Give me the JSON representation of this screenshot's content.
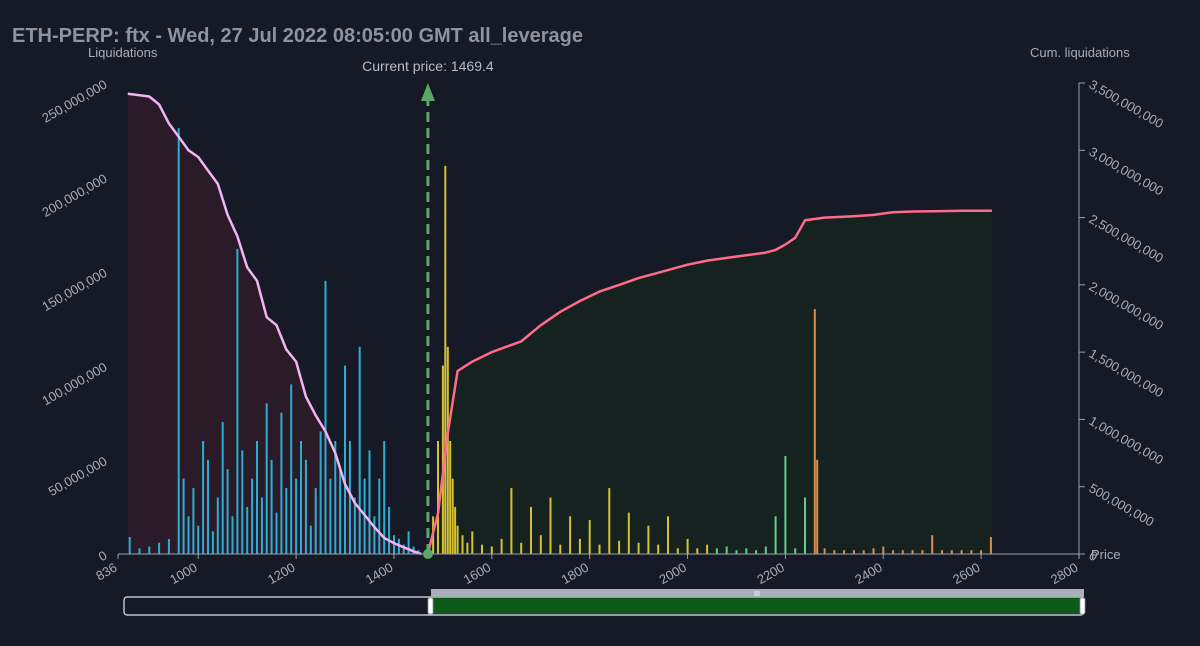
{
  "header": {
    "title": "ETH-PERP: ftx - Wed, 27 Jul 2022 08:05:00 GMT all_leverage"
  },
  "chart_data": {
    "type": "bar",
    "title": "ETH-PERP: ftx - Wed, 27 Jul 2022 08:05:00 GMT all_leverage",
    "y_left_label": "Liquidations",
    "y_right_label": "Cum. liquidations",
    "x_label": "Price",
    "x_range": [
      836,
      2800
    ],
    "y_left_range": [
      0,
      250000000
    ],
    "y_right_range": [
      0,
      3500000000
    ],
    "x_ticks": [
      "836",
      "1000",
      "1200",
      "1400",
      "1600",
      "1800",
      "2000",
      "2200",
      "2400",
      "2600",
      "2800"
    ],
    "y_left_ticks": [
      "0",
      "50,000,000",
      "100,000,000",
      "150,000,000",
      "200,000,000",
      "250,000,000"
    ],
    "y_right_ticks": [
      "0",
      "500,000,000",
      "1,000,000,000",
      "1,500,000,000",
      "2,000,000,000",
      "2,500,000,000",
      "3,000,000,000",
      "3,500,000,000"
    ],
    "current_price": 1469.4,
    "current_price_label": "Current price: 1469.4",
    "colors": {
      "long_bars": "#2aaed6",
      "short_bars_near": "#d8c131",
      "short_bars_mid": "#5fcf8c",
      "short_bars_far": "#d98f4d",
      "long_cum_line": "#f2b4f2",
      "short_cum_line": "#ff6b8a",
      "long_area": "#2b1a27",
      "short_area": "#152220",
      "current_price": "#59a866"
    },
    "long_liquidations": {
      "x": [
        860,
        880,
        900,
        920,
        940,
        960,
        970,
        980,
        990,
        1000,
        1010,
        1020,
        1030,
        1040,
        1050,
        1060,
        1070,
        1080,
        1090,
        1100,
        1110,
        1120,
        1130,
        1140,
        1150,
        1160,
        1170,
        1180,
        1190,
        1200,
        1210,
        1220,
        1230,
        1240,
        1250,
        1260,
        1270,
        1280,
        1290,
        1300,
        1310,
        1320,
        1330,
        1340,
        1350,
        1360,
        1370,
        1380,
        1390,
        1400,
        1410,
        1420,
        1430,
        1440,
        1450
      ],
      "values": [
        9000000,
        3000000,
        4000000,
        6000000,
        8000000,
        226000000,
        40000000,
        20000000,
        35000000,
        15000000,
        60000000,
        50000000,
        12000000,
        30000000,
        70000000,
        45000000,
        20000000,
        162000000,
        55000000,
        25000000,
        40000000,
        60000000,
        30000000,
        80000000,
        50000000,
        22000000,
        75000000,
        35000000,
        90000000,
        40000000,
        60000000,
        50000000,
        15000000,
        35000000,
        65000000,
        145000000,
        40000000,
        60000000,
        45000000,
        100000000,
        60000000,
        30000000,
        110000000,
        40000000,
        55000000,
        20000000,
        40000000,
        60000000,
        25000000,
        10000000,
        8000000,
        5000000,
        12000000,
        4000000,
        2000000
      ],
      "cumulative_x": [
        856,
        900,
        920,
        940,
        960,
        980,
        1000,
        1020,
        1040,
        1060,
        1080,
        1100,
        1120,
        1140,
        1160,
        1180,
        1200,
        1220,
        1240,
        1260,
        1280,
        1300,
        1320,
        1340,
        1360,
        1380,
        1400,
        1420,
        1440,
        1456
      ],
      "cumulative": [
        3420000000,
        3400000000,
        3340000000,
        3200000000,
        3100000000,
        3000000000,
        2950000000,
        2850000000,
        2750000000,
        2520000000,
        2360000000,
        2130000000,
        2030000000,
        1760000000,
        1700000000,
        1520000000,
        1430000000,
        1170000000,
        1030000000,
        910000000,
        750000000,
        520000000,
        380000000,
        290000000,
        200000000,
        120000000,
        80000000,
        50000000,
        20000000,
        0
      ]
    },
    "short_liquidations": {
      "x": [
        1470,
        1480,
        1490,
        1500,
        1505,
        1510,
        1515,
        1520,
        1525,
        1530,
        1540,
        1550,
        1560,
        1580,
        1600,
        1620,
        1640,
        1660,
        1680,
        1700,
        1720,
        1740,
        1760,
        1780,
        1800,
        1820,
        1840,
        1860,
        1880,
        1900,
        1920,
        1940,
        1960,
        1980,
        2000,
        2020,
        2040,
        2060,
        2080,
        2100,
        2120,
        2140,
        2160,
        2180,
        2200,
        2220,
        2240,
        2260,
        2265,
        2280,
        2300,
        2320,
        2340,
        2360,
        2380,
        2400,
        2420,
        2440,
        2460,
        2480,
        2500,
        2520,
        2540,
        2560,
        2580,
        2600,
        2620
      ],
      "values": [
        5000000,
        20000000,
        60000000,
        100000000,
        206000000,
        110000000,
        60000000,
        40000000,
        25000000,
        15000000,
        10000000,
        6000000,
        12000000,
        5000000,
        4000000,
        8000000,
        35000000,
        6000000,
        25000000,
        10000000,
        30000000,
        5000000,
        20000000,
        8000000,
        18000000,
        5000000,
        35000000,
        7000000,
        22000000,
        6000000,
        15000000,
        5000000,
        20000000,
        3000000,
        8000000,
        3000000,
        5000000,
        3000000,
        4000000,
        2000000,
        3000000,
        2000000,
        4000000,
        20000000,
        52000000,
        3000000,
        30000000,
        130000000,
        50000000,
        3000000,
        2000000,
        2000000,
        2000000,
        2000000,
        3000000,
        4000000,
        2000000,
        2000000,
        2000000,
        2000000,
        10000000,
        2000000,
        2000000,
        2000000,
        2000000,
        2000000,
        9000000
      ],
      "cumulative_x": [
        1469,
        1490,
        1510,
        1530,
        1560,
        1600,
        1660,
        1700,
        1740,
        1780,
        1820,
        1860,
        1900,
        1960,
        2000,
        2040,
        2080,
        2120,
        2160,
        2180,
        2200,
        2220,
        2240,
        2280,
        2340,
        2380,
        2420,
        2460,
        2520,
        2560,
        2600,
        2622
      ],
      "cumulative": [
        0,
        300000000,
        900000000,
        1360000000,
        1430000000,
        1500000000,
        1580000000,
        1700000000,
        1800000000,
        1880000000,
        1950000000,
        2000000000,
        2050000000,
        2110000000,
        2150000000,
        2180000000,
        2200000000,
        2220000000,
        2240000000,
        2260000000,
        2300000000,
        2350000000,
        2480000000,
        2500000000,
        2510000000,
        2520000000,
        2540000000,
        2545000000,
        2548000000,
        2550000000,
        2550000000,
        2550000000
      ]
    },
    "legend": "none",
    "grid": false
  },
  "range_slider": {
    "handle_glyph": "III"
  }
}
